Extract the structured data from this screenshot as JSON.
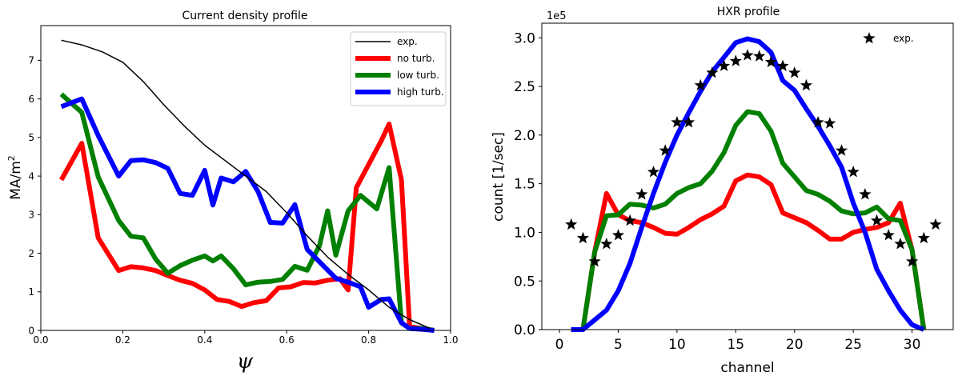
{
  "chart_data": [
    {
      "type": "line",
      "title": "Current density profile",
      "xlabel": "ψ",
      "ylabel_main": "MA/m",
      "ylabel_sup": "2",
      "xlim": [
        0.0,
        1.0
      ],
      "ylim": [
        0,
        7.9
      ],
      "xticks": [
        0.0,
        0.2,
        0.4,
        0.6,
        0.8,
        1.0
      ],
      "xtick_labels": [
        "0.0",
        "0.2",
        "0.4",
        "0.6",
        "0.8",
        "1.0"
      ],
      "yticks": [
        0,
        1,
        2,
        3,
        4,
        5,
        6,
        7
      ],
      "ytick_labels": [
        "0",
        "1",
        "2",
        "3",
        "4",
        "5",
        "6",
        "7"
      ],
      "grid": false,
      "legend_position": "top-right",
      "series": [
        {
          "name": "exp.",
          "color": "#000000",
          "style": "thin-line",
          "x": [
            0.05,
            0.1,
            0.15,
            0.2,
            0.25,
            0.3,
            0.35,
            0.4,
            0.45,
            0.5,
            0.55,
            0.6,
            0.65,
            0.7,
            0.75,
            0.8,
            0.85,
            0.9,
            0.95
          ],
          "y": [
            7.52,
            7.4,
            7.22,
            6.95,
            6.45,
            5.85,
            5.3,
            4.8,
            4.4,
            4.0,
            3.6,
            3.05,
            2.45,
            1.9,
            1.45,
            1.05,
            0.6,
            0.28,
            0.05
          ]
        },
        {
          "name": "no turb.",
          "color": "#ff0000",
          "style": "thick-line",
          "x": [
            0.05,
            0.1,
            0.14,
            0.19,
            0.22,
            0.25,
            0.28,
            0.31,
            0.34,
            0.37,
            0.4,
            0.43,
            0.46,
            0.49,
            0.52,
            0.55,
            0.58,
            0.61,
            0.64,
            0.67,
            0.7,
            0.73,
            0.75,
            0.77,
            0.8,
            0.83,
            0.85,
            0.88,
            0.9,
            0.93,
            0.96
          ],
          "y": [
            3.9,
            4.85,
            2.4,
            1.55,
            1.65,
            1.62,
            1.55,
            1.42,
            1.3,
            1.22,
            1.05,
            0.8,
            0.75,
            0.62,
            0.72,
            0.77,
            1.1,
            1.13,
            1.24,
            1.23,
            1.3,
            1.34,
            1.05,
            3.7,
            4.3,
            4.9,
            5.35,
            3.9,
            0.1,
            0.05,
            0.0
          ]
        },
        {
          "name": "low turb.",
          "color": "#008000",
          "style": "thick-line",
          "x": [
            0.05,
            0.1,
            0.14,
            0.19,
            0.22,
            0.25,
            0.28,
            0.31,
            0.34,
            0.37,
            0.4,
            0.42,
            0.44,
            0.47,
            0.5,
            0.53,
            0.56,
            0.59,
            0.62,
            0.65,
            0.68,
            0.7,
            0.72,
            0.75,
            0.78,
            0.82,
            0.85,
            0.88,
            0.9,
            0.93,
            0.96
          ],
          "y": [
            6.12,
            5.65,
            3.98,
            2.85,
            2.44,
            2.4,
            1.85,
            1.48,
            1.68,
            1.82,
            1.93,
            1.8,
            1.93,
            1.6,
            1.18,
            1.25,
            1.27,
            1.32,
            1.66,
            1.56,
            2.2,
            3.1,
            1.95,
            3.1,
            3.5,
            3.15,
            4.22,
            0.2,
            0.05,
            0.05,
            0.0
          ]
        },
        {
          "name": "high turb.",
          "color": "#0000ff",
          "style": "thick-line",
          "x": [
            0.05,
            0.1,
            0.14,
            0.19,
            0.22,
            0.25,
            0.28,
            0.31,
            0.34,
            0.37,
            0.4,
            0.42,
            0.44,
            0.47,
            0.5,
            0.53,
            0.56,
            0.59,
            0.62,
            0.65,
            0.68,
            0.72,
            0.75,
            0.78,
            0.8,
            0.83,
            0.85,
            0.88,
            0.9,
            0.93,
            0.96
          ],
          "y": [
            5.8,
            6.0,
            5.05,
            4.0,
            4.4,
            4.42,
            4.35,
            4.2,
            3.55,
            3.5,
            4.15,
            3.25,
            3.95,
            3.85,
            4.12,
            3.6,
            2.8,
            2.78,
            3.26,
            2.1,
            1.78,
            1.35,
            1.25,
            1.13,
            0.6,
            0.8,
            0.82,
            0.2,
            0.05,
            0.03,
            0.0
          ]
        }
      ]
    },
    {
      "type": "line",
      "title": "HXR profile",
      "xlabel": "channel",
      "ylabel": "count [1/sec]",
      "y_multiplier_label": "1e5",
      "xlim": [
        -1.5,
        33.5
      ],
      "ylim": [
        0,
        3.15
      ],
      "xticks": [
        0,
        5,
        10,
        15,
        20,
        25,
        30
      ],
      "xtick_labels": [
        "0",
        "5",
        "10",
        "15",
        "20",
        "25",
        "30"
      ],
      "yticks": [
        0,
        0.5,
        1.0,
        1.5,
        2.0,
        2.5,
        3.0
      ],
      "ytick_labels": [
        "0.0",
        "0.5",
        "1.0",
        "1.5",
        "2.0",
        "2.5",
        "3.0"
      ],
      "grid": false,
      "legend_position": "top-right",
      "series": [
        {
          "name": "exp.",
          "color": "#000000",
          "style": "star-markers",
          "x": [
            1,
            2,
            3,
            4,
            5,
            6,
            7,
            8,
            9,
            10,
            11,
            12,
            13,
            14,
            15,
            16,
            17,
            18,
            19,
            20,
            21,
            22,
            23,
            24,
            25,
            26,
            27,
            28,
            29,
            30,
            31,
            32
          ],
          "y": [
            1.08,
            0.94,
            0.7,
            0.88,
            0.97,
            1.12,
            1.39,
            1.62,
            1.84,
            2.13,
            2.13,
            2.51,
            2.64,
            2.71,
            2.76,
            2.82,
            2.81,
            2.75,
            2.71,
            2.64,
            2.51,
            2.13,
            2.12,
            1.84,
            1.62,
            1.39,
            1.12,
            0.97,
            0.88,
            0.7,
            0.94,
            1.08
          ]
        },
        {
          "name": "red",
          "color": "#ff0000",
          "style": "thick-line",
          "x": [
            1,
            2,
            3,
            4,
            5,
            6,
            7,
            8,
            9,
            10,
            11,
            12,
            13,
            14,
            15,
            16,
            17,
            18,
            19,
            20,
            21,
            22,
            23,
            24,
            25,
            26,
            27,
            28,
            29,
            30,
            31
          ],
          "y": [
            0.0,
            0.0,
            0.8,
            1.4,
            1.18,
            1.12,
            1.1,
            1.05,
            0.99,
            0.98,
            1.05,
            1.13,
            1.19,
            1.27,
            1.53,
            1.59,
            1.57,
            1.49,
            1.2,
            1.15,
            1.1,
            1.02,
            0.93,
            0.93,
            1.0,
            1.03,
            1.05,
            1.1,
            1.3,
            0.82,
            0.0
          ]
        },
        {
          "name": "green",
          "color": "#008000",
          "style": "thick-line",
          "x": [
            1,
            2,
            3,
            4,
            5,
            6,
            7,
            8,
            9,
            10,
            11,
            12,
            13,
            14,
            15,
            16,
            17,
            18,
            19,
            20,
            21,
            22,
            23,
            24,
            25,
            26,
            27,
            28,
            29,
            30,
            31
          ],
          "y": [
            0.0,
            0.0,
            0.8,
            1.17,
            1.18,
            1.29,
            1.28,
            1.25,
            1.29,
            1.4,
            1.46,
            1.5,
            1.63,
            1.82,
            2.1,
            2.24,
            2.22,
            2.04,
            1.71,
            1.57,
            1.43,
            1.39,
            1.32,
            1.22,
            1.19,
            1.2,
            1.26,
            1.14,
            1.12,
            0.82,
            0.0
          ]
        },
        {
          "name": "blue",
          "color": "#0000ff",
          "style": "thick-line",
          "x": [
            1,
            2,
            3,
            4,
            5,
            6,
            7,
            8,
            9,
            10,
            11,
            12,
            13,
            14,
            15,
            16,
            17,
            18,
            19,
            20,
            21,
            22,
            23,
            24,
            25,
            26,
            27,
            28,
            29,
            30,
            31
          ],
          "y": [
            0.0,
            0.0,
            0.1,
            0.2,
            0.4,
            0.68,
            1.05,
            1.4,
            1.72,
            2.0,
            2.23,
            2.45,
            2.65,
            2.8,
            2.95,
            2.99,
            2.96,
            2.85,
            2.56,
            2.46,
            2.27,
            2.09,
            1.89,
            1.67,
            1.3,
            1.0,
            0.62,
            0.4,
            0.2,
            0.05,
            0.0
          ]
        }
      ]
    }
  ]
}
